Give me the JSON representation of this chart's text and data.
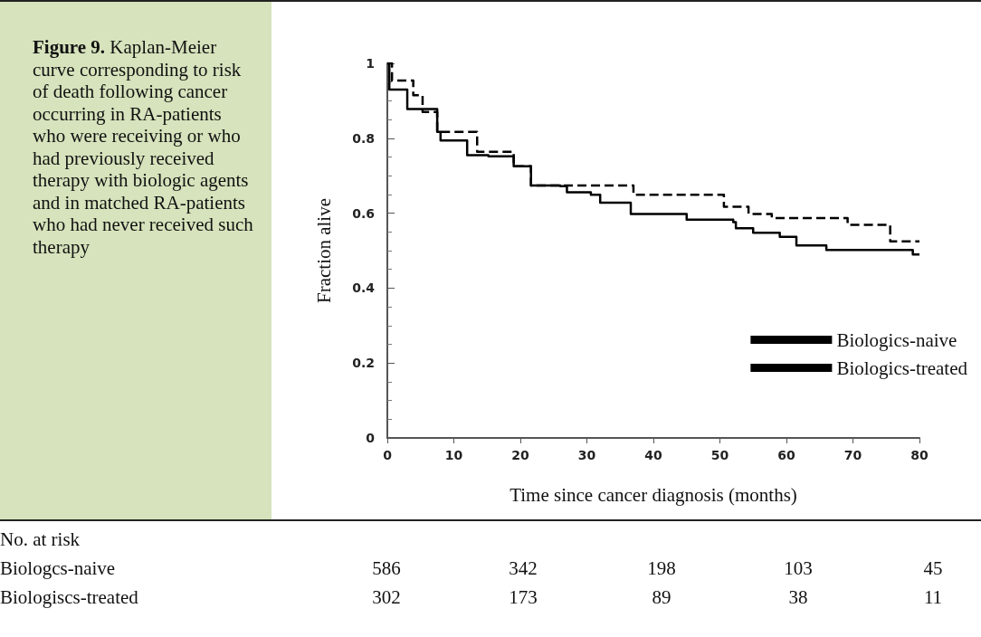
{
  "chart_data": {
    "type": "step",
    "title": "Figure 9.",
    "subtitle": "Kaplan-Meier curve corresponding to risk of death following cancer occurring in RA-patients who were receiving or who had previously received therapy with biologic agents and in matched RA-patients who had never received such therapy",
    "xlabel": "Time since cancer diagnosis (months)",
    "ylabel": "Fraction alive",
    "series": [
      {
        "name": "Biologics-naive",
        "color": "#000000",
        "line_style": "dashed",
        "x": [
          0,
          0.7,
          3.9,
          5.3,
          7.5,
          13.5,
          19,
          21.6,
          26.5,
          37,
          46.5,
          50.6,
          54.3,
          57.8,
          69.2,
          75.6,
          80
        ],
        "values": [
          1,
          0.954,
          0.915,
          0.87,
          0.817,
          0.764,
          0.725,
          0.674,
          0.674,
          0.649,
          0.649,
          0.617,
          0.598,
          0.587,
          0.569,
          0.525,
          0.525
        ]
      },
      {
        "name": "Biologics-treated",
        "color": "#000000",
        "line_style": "solid",
        "x": [
          0,
          0.3,
          3,
          7.5,
          8,
          12,
          15.2,
          19,
          21.6,
          26,
          27,
          30.6,
          32,
          36.6,
          45,
          52,
          52.4,
          55,
          59,
          61.5,
          66,
          79,
          80
        ],
        "values": [
          1,
          0.93,
          0.878,
          0.817,
          0.794,
          0.755,
          0.752,
          0.725,
          0.674,
          0.672,
          0.656,
          0.649,
          0.628,
          0.598,
          0.583,
          0.576,
          0.56,
          0.548,
          0.537,
          0.514,
          0.502,
          0.49,
          0.49
        ]
      }
    ],
    "xlim": [
      0,
      80
    ],
    "xticks": [
      0,
      10,
      20,
      30,
      40,
      50,
      60,
      70,
      80
    ],
    "ylim": [
      0,
      1
    ],
    "yticks": [
      0,
      0.2,
      0.4,
      0.6,
      0.8,
      1
    ],
    "grid": false,
    "legend": "bottom right",
    "marker": "none",
    "annotations": [
      "No. at risk",
      "Biologcs-naive",
      "586",
      "342",
      "198",
      "103",
      "45",
      "Biologiscs-treated",
      "302",
      "173",
      "89",
      "38",
      "11"
    ]
  }
}
